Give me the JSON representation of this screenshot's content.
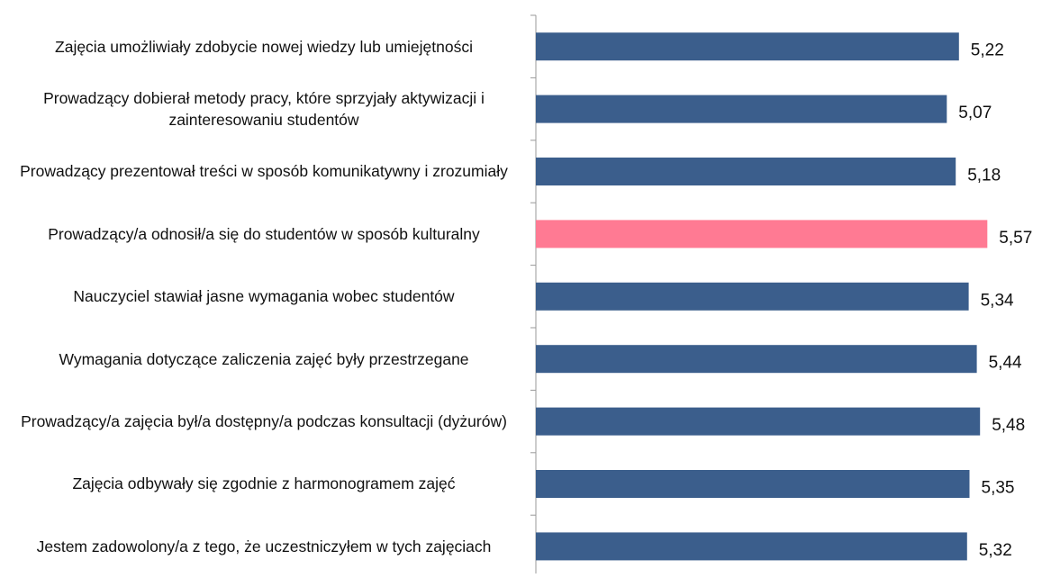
{
  "chart_data": {
    "type": "barh",
    "categories": [
      "Zajęcia umożliwiały zdobycie nowej wiedzy lub umiejętności",
      "Prowadzący dobierał metody pracy, które sprzyjały aktywizacji i zainteresowaniu studentów",
      "Prowadzący prezentował treści w sposób komunikatywny i zrozumiały",
      "Prowadzący/a odnosił/a się do studentów w sposób kulturalny",
      "Nauczyciel stawiał jasne wymagania wobec studentów",
      "Wymagania dotyczące zaliczenia zajęć były przestrzegane",
      "Prowadzący/a zajęcia był/a dostępny/a podczas konsultacji (dyżurów)",
      "Zajęcia odbywały się zgodnie z harmonogramem zajęć",
      "Jestem zadowolony/a z tego, że uczestniczyłem w tych zajęciach"
    ],
    "values": [
      5.22,
      5.07,
      5.18,
      5.57,
      5.34,
      5.44,
      5.48,
      5.35,
      5.32
    ],
    "value_labels": [
      "5,22",
      "5,07",
      "5,18",
      "5,57",
      "5,34",
      "5,44",
      "5,48",
      "5,35",
      "5,32"
    ],
    "colors": [
      "#3b5e8c",
      "#3b5e8c",
      "#3b5e8c",
      "#ff7a93",
      "#3b5e8c",
      "#3b5e8c",
      "#3b5e8c",
      "#3b5e8c",
      "#3b5e8c"
    ]
  }
}
